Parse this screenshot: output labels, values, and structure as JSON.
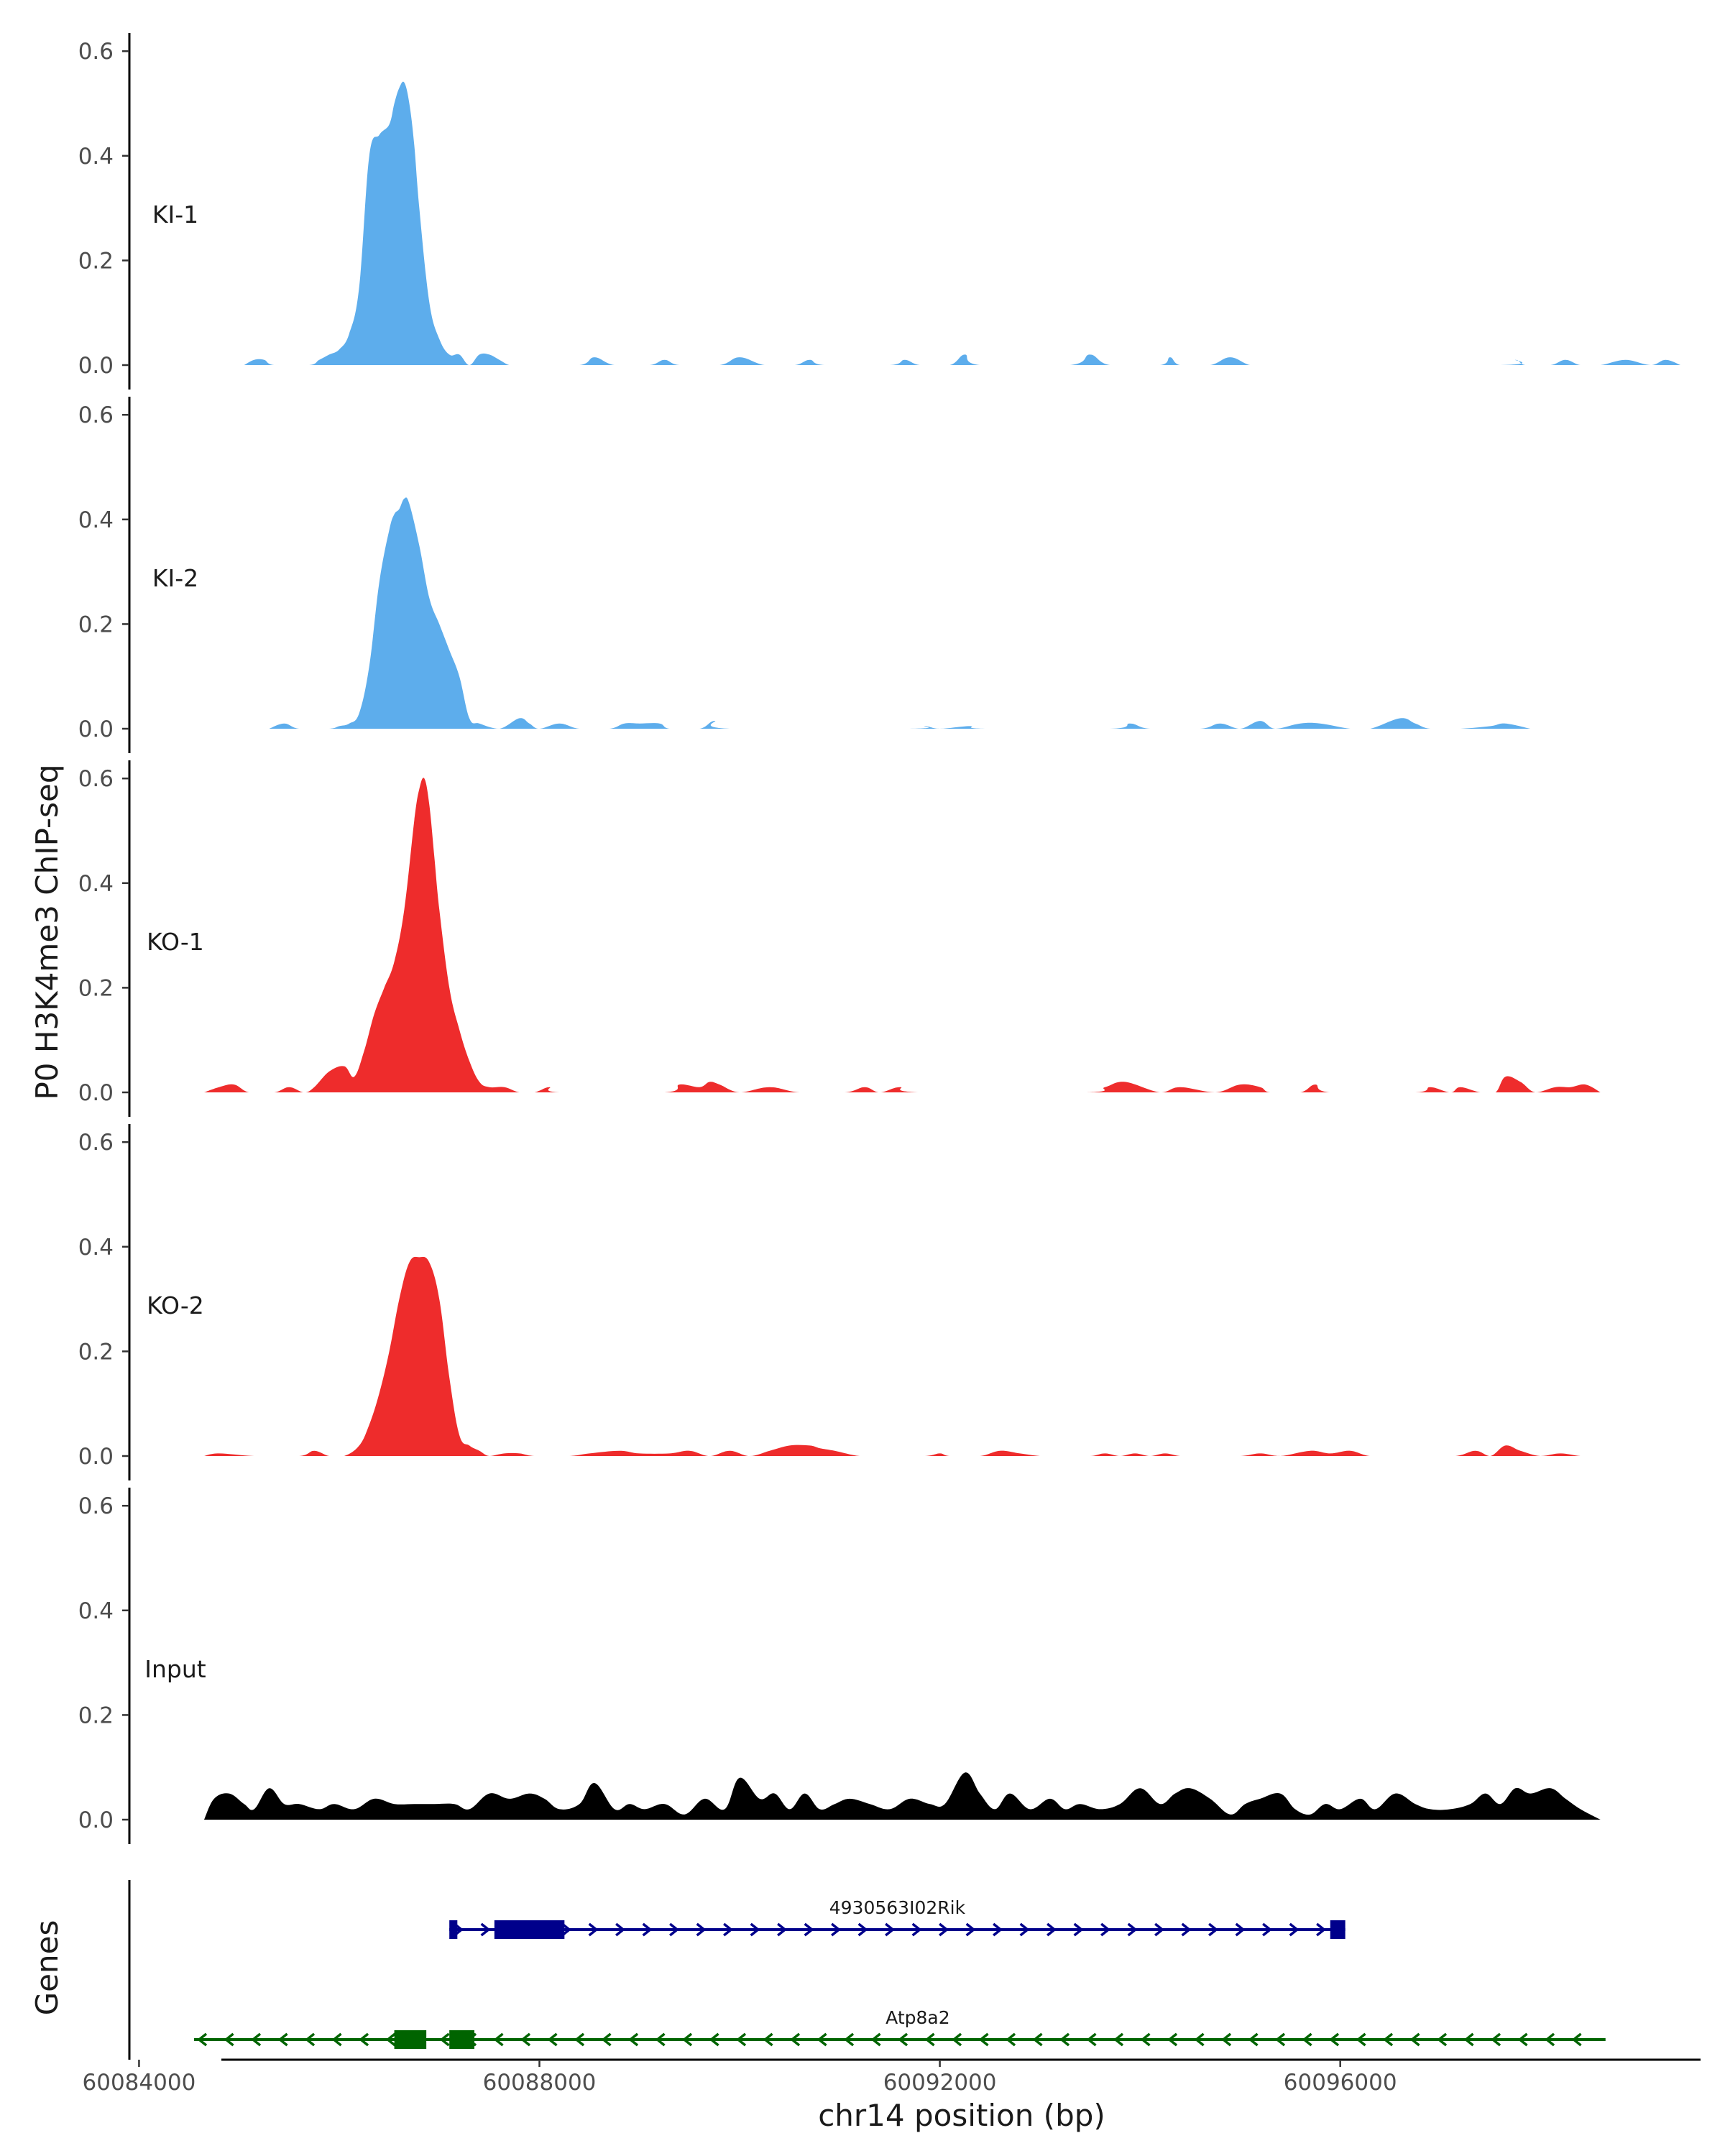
{
  "chart_data": {
    "type": "area",
    "title": "",
    "ylabel": "P0 H3K4me3 ChIP-seq",
    "xlabel": "chr14 position (bp)",
    "xlim": [
      60083900,
      60099700
    ],
    "ylim": [
      0,
      0.65
    ],
    "y_ticks": [
      0.0,
      0.2,
      0.4,
      0.6
    ],
    "y_tick_labels": [
      "0.0",
      "0.2",
      "0.4",
      "0.6"
    ],
    "x_ticks": [
      60084000,
      60088000,
      60092000,
      60096000
    ],
    "x_tick_labels": [
      "60084000",
      "60088000",
      "60092000",
      "60096000"
    ],
    "tracks": [
      {
        "name": "KI-1",
        "color": "#5DADEC",
        "x": [
          60085050,
          60085150,
          60085250,
          60085350,
          60085700,
          60085800,
          60085900,
          60086000,
          60086100,
          60086200,
          60086300,
          60086400,
          60086500,
          60086550,
          60086600,
          60086650,
          60086700,
          60086750,
          60086800,
          60086900,
          60087000,
          60087100,
          60087200,
          60087300,
          60087400,
          60087500,
          60087600,
          60087700,
          60087800,
          60087900,
          60088400,
          60088550,
          60088750,
          60089100,
          60089250,
          60089400,
          60089800,
          60090000,
          60090250,
          60090550,
          60090700,
          60090850,
          60091500,
          60091650,
          60091800,
          60092100,
          60092250,
          60092400,
          60093300,
          60093500,
          60093700,
          60094200,
          60094300,
          60094400,
          60094700,
          60094900,
          60095100,
          60095300,
          60095450,
          60097600,
          60097750,
          60097850,
          60098100,
          60098250,
          60098400,
          60098600,
          60098850,
          60099100,
          60099250,
          60099400
        ],
        "y": [
          0,
          0.01,
          0.01,
          0,
          0,
          0.01,
          0.02,
          0.03,
          0.06,
          0.15,
          0.4,
          0.44,
          0.46,
          0.5,
          0.53,
          0.54,
          0.5,
          0.42,
          0.3,
          0.12,
          0.05,
          0.02,
          0.02,
          0,
          0.02,
          0.02,
          0.01,
          0,
          0,
          0,
          0,
          0.015,
          0,
          0,
          0.01,
          0,
          0,
          0.015,
          0,
          0,
          0.01,
          0,
          0,
          0.01,
          0,
          0,
          0.02,
          0,
          0,
          0.02,
          0,
          0,
          0.015,
          0,
          0,
          0.015,
          0,
          0,
          0,
          0,
          0.01,
          0,
          0,
          0.01,
          0,
          0,
          0.01,
          0,
          0.01,
          0
        ]
      },
      {
        "name": "KI-2",
        "color": "#5DADEC",
        "x": [
          60085300,
          60085450,
          60085600,
          60085900,
          60086000,
          60086100,
          60086200,
          60086300,
          60086400,
          60086500,
          60086550,
          60086600,
          60086650,
          60086700,
          60086800,
          60086900,
          60087000,
          60087100,
          60087200,
          60087300,
          60087400,
          60087600,
          60087800,
          60087900,
          60088000,
          60088200,
          60088400,
          60088700,
          60088850,
          60089000,
          60089200,
          60089300,
          60089600,
          60089750,
          60089900,
          60091700,
          60091850,
          60092000,
          60092300,
          60092450,
          60093700,
          60093900,
          60094100,
          60094600,
          60094800,
          60095000,
          60095200,
          60095350,
          60095600,
          60095800,
          60096100,
          60096300,
          60096600,
          60096750,
          60096900,
          60097200,
          60097500,
          60097650,
          60097900
        ],
        "y": [
          0,
          0.01,
          0,
          0,
          0.005,
          0.01,
          0.03,
          0.12,
          0.28,
          0.38,
          0.41,
          0.42,
          0.44,
          0.43,
          0.35,
          0.25,
          0.2,
          0.15,
          0.1,
          0.02,
          0.01,
          0,
          0.02,
          0.01,
          0,
          0.01,
          0,
          0,
          0.01,
          0.01,
          0.01,
          0,
          0,
          0.015,
          0,
          0,
          0.005,
          0,
          0.005,
          0,
          0,
          0.01,
          0,
          0,
          0.01,
          0,
          0.015,
          0,
          0.01,
          0.01,
          0,
          0,
          0.02,
          0.01,
          0,
          0,
          0.005,
          0.01,
          0
        ]
      },
      {
        "name": "KO-1",
        "color": "#EE2C2C",
        "x": [
          60084650,
          60084800,
          60084950,
          60085100,
          60085350,
          60085500,
          60085650,
          60085750,
          60085900,
          60086050,
          60086150,
          60086250,
          60086350,
          60086450,
          60086550,
          60086650,
          60086750,
          60086800,
          60086850,
          60086900,
          60086950,
          60087000,
          60087100,
          60087200,
          60087300,
          60087400,
          60087500,
          60087650,
          60087800,
          60087950,
          60088100,
          60088200,
          60089250,
          60089400,
          60089600,
          60089700,
          60089800,
          60090000,
          60090300,
          60090600,
          60091050,
          60091250,
          60091400,
          60091600,
          60091800,
          60093450,
          60093650,
          60093850,
          60094200,
          60094400,
          60094750,
          60095000,
          60095200,
          60095300,
          60095600,
          60095750,
          60095900,
          60096750,
          60096900,
          60097100,
          60097200,
          60097400,
          60097550,
          60097650,
          60097800,
          60097950,
          60098150,
          60098300,
          60098450,
          60098600
        ],
        "y": [
          0,
          0.01,
          0.015,
          0,
          0,
          0.01,
          0,
          0.01,
          0.04,
          0.05,
          0.03,
          0.08,
          0.15,
          0.2,
          0.25,
          0.35,
          0.52,
          0.58,
          0.6,
          0.55,
          0.45,
          0.35,
          0.2,
          0.12,
          0.06,
          0.02,
          0.01,
          0.01,
          0,
          0,
          0.01,
          0,
          0,
          0.015,
          0.01,
          0.02,
          0.015,
          0,
          0.01,
          0,
          0,
          0.01,
          0,
          0.01,
          0,
          0,
          0.01,
          0.02,
          0,
          0.01,
          0,
          0.015,
          0.01,
          0,
          0,
          0.015,
          0,
          0,
          0.01,
          0,
          0.01,
          0,
          0,
          0.03,
          0.02,
          0,
          0.01,
          0.01,
          0.015,
          0
        ]
      },
      {
        "name": "KO-2",
        "color": "#EE2C2C",
        "x": [
          60084650,
          60084800,
          60085150,
          60085600,
          60085750,
          60085900,
          60086050,
          60086200,
          60086300,
          60086400,
          60086500,
          60086600,
          60086700,
          60086800,
          60086900,
          60087000,
          60087100,
          60087200,
          60087300,
          60087400,
          60087500,
          60087650,
          60087800,
          60087950,
          60088300,
          60088500,
          60088800,
          60089000,
          60089300,
          60089500,
          60089700,
          60089900,
          60090100,
          60090300,
          60090500,
          60090700,
          60090800,
          60090950,
          60091200,
          60091450,
          60091850,
          60092000,
          60092100,
          60092400,
          60092600,
          60092800,
          60093000,
          60093200,
          60093500,
          60093650,
          60093800,
          60093950,
          60094100,
          60094250,
          60094400,
          60094600,
          60095000,
          60095200,
          60095400,
          60095700,
          60095900,
          60096100,
          60096300,
          60096600,
          60096800,
          60097150,
          60097350,
          60097500,
          60097650,
          60097800,
          60098000,
          60098200,
          60098400,
          60098600
        ],
        "y": [
          0,
          0.005,
          0,
          0,
          0.01,
          0,
          0,
          0.02,
          0.06,
          0.12,
          0.2,
          0.3,
          0.37,
          0.38,
          0.37,
          0.3,
          0.15,
          0.04,
          0.02,
          0.01,
          0,
          0.005,
          0.005,
          0,
          0,
          0.005,
          0.01,
          0.005,
          0.005,
          0.01,
          0,
          0.01,
          0,
          0.01,
          0.02,
          0.02,
          0.015,
          0.01,
          0,
          0,
          0,
          0.005,
          0,
          0,
          0.01,
          0.005,
          0,
          0,
          0,
          0.005,
          0,
          0.005,
          0,
          0.005,
          0,
          0,
          0,
          0.005,
          0,
          0.01,
          0.005,
          0.01,
          0,
          0,
          0,
          0,
          0.01,
          0,
          0.02,
          0.01,
          0,
          0.005,
          0,
          0
        ],
        "extra_peaks": []
      },
      {
        "name": "Input",
        "color": "#000000",
        "x": [
          60084650,
          60084750,
          60084900,
          60085050,
          60085150,
          60085300,
          60085450,
          60085600,
          60085800,
          60085950,
          60086150,
          60086350,
          60086550,
          60086750,
          60086950,
          60087150,
          60087300,
          60087500,
          60087700,
          60087900,
          60088050,
          60088200,
          60088400,
          60088550,
          60088750,
          60088900,
          60089050,
          60089250,
          60089450,
          60089650,
          60089850,
          60090000,
          60090200,
          60090350,
          60090500,
          60090650,
          60090800,
          60090950,
          60091100,
          60091300,
          60091500,
          60091700,
          60091900,
          60092050,
          60092250,
          60092400,
          60092550,
          60092700,
          60092900,
          60093100,
          60093250,
          60093400,
          60093600,
          60093800,
          60094000,
          60094200,
          60094350,
          60094500,
          60094700,
          60094900,
          60095050,
          60095200,
          60095400,
          60095550,
          60095700,
          60095850,
          60096000,
          60096200,
          60096350,
          60096550,
          60096750,
          60096900,
          60097100,
          60097300,
          60097450,
          60097600,
          60097750,
          60097900,
          60098100,
          60098250,
          60098400,
          60098600
        ],
        "y": [
          0,
          0.04,
          0.05,
          0.03,
          0.02,
          0.06,
          0.03,
          0.03,
          0.02,
          0.03,
          0.02,
          0.04,
          0.03,
          0.03,
          0.03,
          0.03,
          0.02,
          0.05,
          0.04,
          0.05,
          0.04,
          0.02,
          0.03,
          0.07,
          0.02,
          0.03,
          0.02,
          0.03,
          0.01,
          0.04,
          0.02,
          0.08,
          0.04,
          0.05,
          0.02,
          0.05,
          0.02,
          0.03,
          0.04,
          0.03,
          0.02,
          0.04,
          0.03,
          0.03,
          0.09,
          0.05,
          0.02,
          0.05,
          0.02,
          0.04,
          0.02,
          0.03,
          0.02,
          0.03,
          0.06,
          0.03,
          0.05,
          0.06,
          0.04,
          0.01,
          0.03,
          0.04,
          0.05,
          0.02,
          0.01,
          0.03,
          0.02,
          0.04,
          0.02,
          0.05,
          0.03,
          0.02,
          0.02,
          0.03,
          0.05,
          0.03,
          0.06,
          0.05,
          0.06,
          0.04,
          0.02,
          0
        ]
      }
    ],
    "genes_track": {
      "label": "Genes",
      "genes": [
        {
          "name": "4930563I02Rik",
          "color": "#00008B",
          "strand": "+",
          "start": 60087100,
          "end": 60096050,
          "exons": [
            [
              60087100,
              60087180
            ],
            [
              60087550,
              60088250
            ],
            [
              60095900,
              60096050
            ]
          ]
        },
        {
          "name": "Atp8a2",
          "color": "#006400",
          "strand": "-",
          "start": 60084550,
          "end": 60098650,
          "exons": [
            [
              60086550,
              60086870
            ],
            [
              60087100,
              60087350
            ]
          ]
        }
      ]
    }
  }
}
